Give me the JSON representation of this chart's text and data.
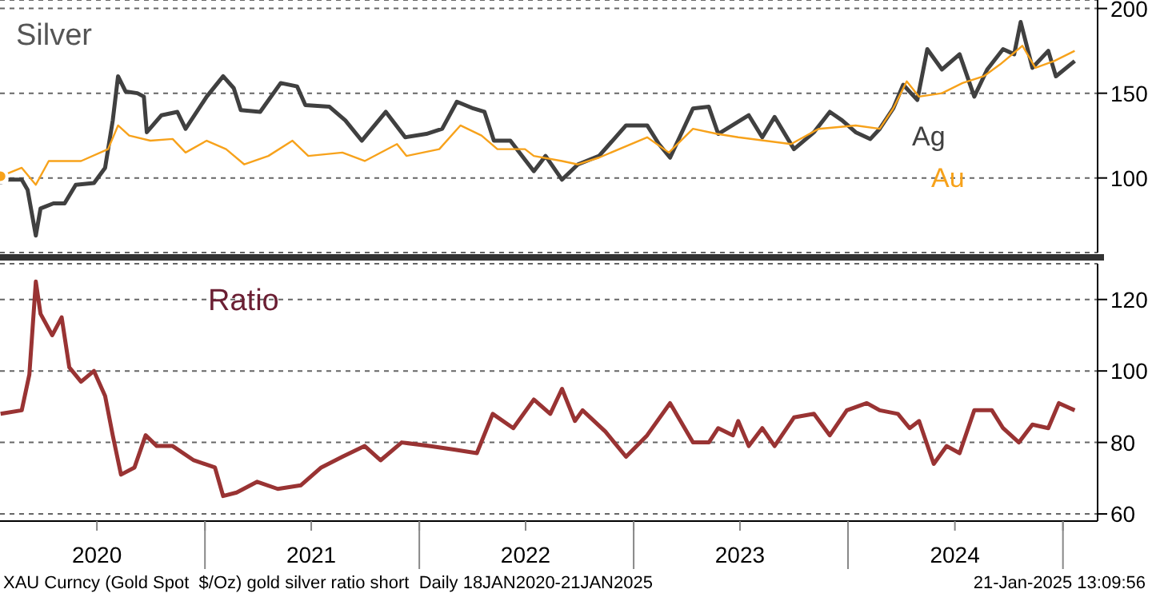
{
  "chart_data": [
    {
      "type": "line",
      "title": "Silver",
      "xlim": [
        "2020-01-18",
        "2025-03-01"
      ],
      "ylim": [
        56,
        205
      ],
      "yticks": [
        100,
        150,
        200
      ],
      "grid": "y",
      "tick_labels": "y",
      "series": [
        {
          "name": "Ag",
          "color": "#404040",
          "x": [
            "2020-01-19",
            "2020-02-24",
            "2020-03-05",
            "2020-03-19",
            "2020-03-27",
            "2020-04-18",
            "2020-05-07",
            "2020-05-26",
            "2020-06-26",
            "2020-07-15",
            "2020-07-28",
            "2020-08-06",
            "2020-08-19",
            "2020-09-08",
            "2020-09-19",
            "2020-09-24",
            "2020-10-19",
            "2020-11-15",
            "2020-11-29",
            "2021-01-04",
            "2021-02-01",
            "2021-02-19",
            "2021-03-03",
            "2021-04-05",
            "2021-05-10",
            "2021-06-07",
            "2021-06-21",
            "2021-08-01",
            "2021-08-28",
            "2021-09-25",
            "2021-11-05",
            "2021-12-08",
            "2022-01-13",
            "2022-02-09",
            "2022-03-06",
            "2022-04-03",
            "2022-04-22",
            "2022-05-08",
            "2022-06-05",
            "2022-07-15",
            "2022-08-04",
            "2022-09-01",
            "2022-09-28",
            "2022-11-03",
            "2022-12-19",
            "2023-01-24",
            "2023-02-13",
            "2023-03-04",
            "2023-04-12",
            "2023-05-09",
            "2023-05-25",
            "2023-07-16",
            "2023-08-08",
            "2023-08-29",
            "2023-10-01",
            "2023-11-04",
            "2023-12-01",
            "2023-12-22",
            "2024-01-14",
            "2024-02-08",
            "2024-02-24",
            "2024-03-18",
            "2024-04-04",
            "2024-04-28",
            "2024-05-15",
            "2024-06-09",
            "2024-07-09",
            "2024-08-03",
            "2024-08-25",
            "2024-09-21",
            "2024-10-10",
            "2024-10-21",
            "2024-11-10",
            "2024-12-07",
            "2024-12-20",
            "2025-01-21"
          ],
          "values": [
            99,
            99,
            93,
            66,
            82,
            85,
            85,
            96,
            97,
            106,
            134,
            160,
            151,
            150,
            148,
            127,
            137,
            139,
            129,
            148,
            160,
            153,
            140,
            139,
            156,
            154,
            143,
            142,
            134,
            122,
            139,
            124,
            126,
            129,
            145,
            141,
            139,
            122,
            122,
            104,
            113,
            99,
            108,
            113,
            131,
            131,
            120,
            112,
            141,
            142,
            126,
            137,
            124,
            136,
            117,
            127,
            139,
            134,
            127,
            123,
            129,
            141,
            155,
            146,
            176,
            164,
            173,
            148,
            164,
            176,
            173,
            192,
            165,
            175,
            160,
            169
          ]
        },
        {
          "name": "Au",
          "color": "#f7a21b",
          "x": [
            "2020-01-19",
            "2020-02-24",
            "2020-03-19",
            "2020-04-10",
            "2020-06-04",
            "2020-07-20",
            "2020-08-06",
            "2020-08-25",
            "2020-09-30",
            "2020-11-07",
            "2020-11-29",
            "2021-01-04",
            "2021-02-06",
            "2021-03-09",
            "2021-04-19",
            "2021-05-30",
            "2021-06-26",
            "2021-08-23",
            "2021-09-30",
            "2021-11-24",
            "2021-12-10",
            "2022-02-04",
            "2022-03-12",
            "2022-04-17",
            "2022-05-14",
            "2022-06-30",
            "2022-07-15",
            "2022-09-01",
            "2022-09-28",
            "2022-11-03",
            "2023-01-24",
            "2023-03-02",
            "2023-04-12",
            "2023-05-23",
            "2023-06-28",
            "2023-09-26",
            "2023-11-12",
            "2024-01-14",
            "2024-02-24",
            "2024-03-18",
            "2024-04-10",
            "2024-05-01",
            "2024-06-09",
            "2024-07-14",
            "2024-08-19",
            "2024-09-16",
            "2024-10-24",
            "2024-11-15",
            "2024-12-17",
            "2025-01-21"
          ],
          "values": [
            101,
            106,
            96,
            110,
            110,
            117,
            131,
            125,
            122,
            123,
            115,
            122,
            117,
            108,
            113,
            122,
            113,
            115,
            110,
            120,
            113,
            117,
            131,
            125,
            117,
            117,
            113,
            110,
            108,
            112,
            124,
            115,
            129,
            126,
            124,
            120,
            129,
            131,
            129,
            141,
            157,
            148,
            150,
            156,
            160,
            167,
            178,
            165,
            169,
            175
          ]
        }
      ]
    },
    {
      "type": "line",
      "title": "Ratio",
      "xlim": [
        "2020-01-18",
        "2025-03-01"
      ],
      "ylim": [
        58,
        130
      ],
      "yticks": [
        60,
        80,
        100,
        120
      ],
      "grid": "y",
      "xticks": [
        {
          "value": "2020-07-01",
          "label": "2020"
        },
        {
          "value": "2021-01-01",
          "label": null
        },
        {
          "value": "2021-07-01",
          "label": "2021"
        },
        {
          "value": "2022-01-01",
          "label": null
        },
        {
          "value": "2022-07-01",
          "label": "2022"
        },
        {
          "value": "2023-01-01",
          "label": null
        },
        {
          "value": "2023-07-01",
          "label": "2023"
        },
        {
          "value": "2024-01-01",
          "label": null
        },
        {
          "value": "2024-07-01",
          "label": "2024"
        },
        {
          "value": "2025-01-01",
          "label": null
        }
      ],
      "annotations": [
        "XAU Curncy (Gold Spot  $/Oz) gold silver ratio short  Daily 18JAN2020-21JAN2025",
        "21-Jan-2025 13:09:56"
      ],
      "series": [
        {
          "color": "#993333",
          "x": [
            "2020-01-19",
            "2020-02-24",
            "2020-03-08",
            "2020-03-19",
            "2020-03-27",
            "2020-04-16",
            "2020-05-02",
            "2020-05-15",
            "2020-06-04",
            "2020-06-26",
            "2020-07-15",
            "2020-07-28",
            "2020-08-11",
            "2020-09-03",
            "2020-09-22",
            "2020-10-11",
            "2020-11-07",
            "2020-12-13",
            "2021-01-18",
            "2021-02-01",
            "2021-02-24",
            "2021-03-31",
            "2021-05-05",
            "2021-06-13",
            "2021-07-18",
            "2021-08-23",
            "2021-09-30",
            "2021-10-27",
            "2021-12-02",
            "2022-01-18",
            "2022-03-01",
            "2022-04-09",
            "2022-05-06",
            "2022-06-10",
            "2022-07-15",
            "2022-08-12",
            "2022-09-01",
            "2022-09-23",
            "2022-10-06",
            "2022-11-14",
            "2022-12-19",
            "2023-01-24",
            "2023-03-04",
            "2023-04-12",
            "2023-05-09",
            "2023-05-25",
            "2023-06-19",
            "2023-06-28",
            "2023-07-16",
            "2023-08-08",
            "2023-08-29",
            "2023-10-01",
            "2023-11-04",
            "2023-12-01",
            "2023-12-30",
            "2024-02-02",
            "2024-02-24",
            "2024-03-26",
            "2024-04-15",
            "2024-05-01",
            "2024-05-26",
            "2024-06-17",
            "2024-07-09",
            "2024-08-03",
            "2024-09-02",
            "2024-09-21",
            "2024-10-18",
            "2024-11-10",
            "2024-12-07",
            "2024-12-25",
            "2025-01-21"
          ],
          "values": [
            88,
            89,
            99,
            125,
            116,
            110,
            115,
            101,
            97,
            100,
            93,
            82,
            71,
            73,
            82,
            79,
            79,
            75,
            73,
            65,
            66,
            69,
            67,
            68,
            73,
            76,
            79,
            75,
            80,
            79,
            78,
            77,
            88,
            84,
            92,
            88,
            95,
            86,
            89,
            83,
            76,
            82,
            91,
            80,
            80,
            84,
            82,
            86,
            79,
            84,
            79,
            87,
            88,
            82,
            89,
            91,
            89,
            88,
            84,
            86,
            74,
            79,
            77,
            89,
            89,
            84,
            80,
            85,
            84,
            91,
            89
          ]
        }
      ]
    }
  ]
}
